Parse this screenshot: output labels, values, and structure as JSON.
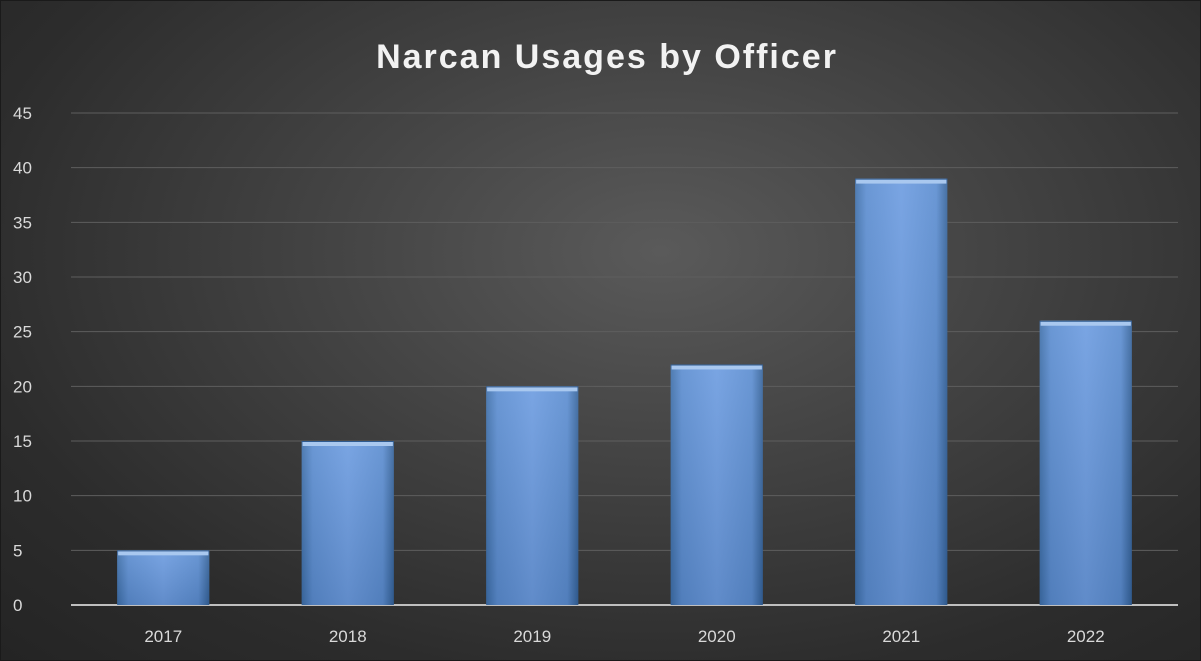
{
  "chart_data": {
    "type": "bar",
    "title": "Narcan Usages by Officer",
    "categories": [
      "2017",
      "2018",
      "2019",
      "2020",
      "2021",
      "2022"
    ],
    "values": [
      5,
      15,
      20,
      22,
      39,
      26
    ],
    "ylim": [
      0,
      45
    ],
    "yticks": [
      0,
      5,
      10,
      15,
      20,
      25,
      30,
      35,
      40,
      45
    ],
    "xlabel": "",
    "ylabel": "",
    "grid": true,
    "legend": "none",
    "colors": {
      "bar_light": "#8fb4e3",
      "bar_main": "#4f81bd",
      "bar_dark": "#3a6aa8",
      "bar_top": "#a9c8ef",
      "background": "#3a3a3a",
      "text": "#d9d9d9"
    }
  }
}
